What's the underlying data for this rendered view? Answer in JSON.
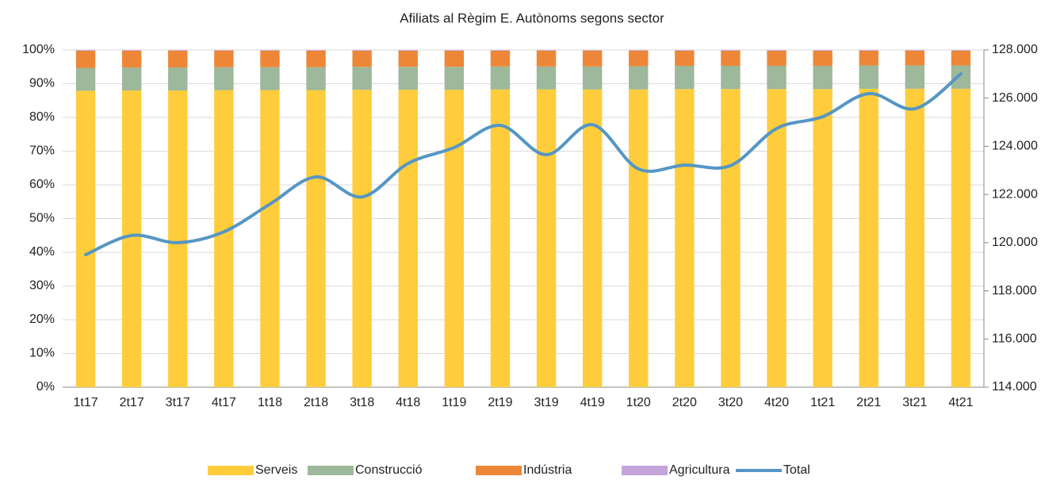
{
  "chart_data": {
    "type": "bar",
    "stacked": true,
    "title": "Afiliats al Règim E. Autònoms segons sector",
    "categories": [
      "1t17",
      "2t17",
      "3t17",
      "4t17",
      "1t18",
      "2t18",
      "3t18",
      "4t18",
      "1t19",
      "2t19",
      "3t19",
      "4t19",
      "1t20",
      "2t20",
      "3t20",
      "4t20",
      "1t21",
      "2t21",
      "3t21",
      "4t21"
    ],
    "series": [
      {
        "name": "Serveis",
        "color": "#FFCD3C",
        "values": [
          87.9,
          88.0,
          88.0,
          88.1,
          88.1,
          88.1,
          88.2,
          88.2,
          88.2,
          88.3,
          88.3,
          88.3,
          88.3,
          88.4,
          88.4,
          88.4,
          88.4,
          88.5,
          88.5,
          88.5
        ]
      },
      {
        "name": "Construcció",
        "color": "#9DB89A",
        "values": [
          6.8,
          6.8,
          6.8,
          6.8,
          6.8,
          6.8,
          6.8,
          6.8,
          6.8,
          6.8,
          6.8,
          6.8,
          6.9,
          6.9,
          6.9,
          6.9,
          6.9,
          6.9,
          6.9,
          6.9
        ]
      },
      {
        "name": "Indústria",
        "color": "#ED8737",
        "values": [
          5.1,
          5.0,
          5.0,
          4.9,
          4.9,
          4.9,
          4.8,
          4.8,
          4.8,
          4.7,
          4.7,
          4.7,
          4.6,
          4.5,
          4.5,
          4.5,
          4.5,
          4.4,
          4.4,
          4.4
        ]
      },
      {
        "name": "Agricultura",
        "color": "#C3A5D9",
        "values": [
          0.2,
          0.2,
          0.2,
          0.2,
          0.2,
          0.2,
          0.2,
          0.2,
          0.2,
          0.2,
          0.2,
          0.2,
          0.2,
          0.2,
          0.2,
          0.2,
          0.2,
          0.2,
          0.2,
          0.2
        ]
      },
      {
        "name": "Total",
        "type": "line",
        "axis": "y2",
        "color": "#5596C4",
        "values": [
          119500,
          120300,
          120000,
          120450,
          121600,
          122730,
          121900,
          123290,
          123950,
          124870,
          123650,
          124900,
          123060,
          123220,
          123200,
          124740,
          125230,
          126190,
          125560,
          127010
        ]
      }
    ],
    "ylim": [
      0,
      100
    ],
    "yticks": [
      {
        "value": 0,
        "label": "0%"
      },
      {
        "value": 10,
        "label": "10%"
      },
      {
        "value": 20,
        "label": "20%"
      },
      {
        "value": 30,
        "label": "30%"
      },
      {
        "value": 40,
        "label": "40%"
      },
      {
        "value": 50,
        "label": "50%"
      },
      {
        "value": 60,
        "label": "60%"
      },
      {
        "value": 70,
        "label": "70%"
      },
      {
        "value": 80,
        "label": "80%"
      },
      {
        "value": 90,
        "label": "90%"
      },
      {
        "value": 100,
        "label": "100%"
      }
    ],
    "y2lim": [
      114000,
      128000
    ],
    "y2ticks": [
      {
        "value": 114000,
        "label": "114.000"
      },
      {
        "value": 116000,
        "label": "116.000"
      },
      {
        "value": 118000,
        "label": "118.000"
      },
      {
        "value": 120000,
        "label": "120.000"
      },
      {
        "value": 122000,
        "label": "122.000"
      },
      {
        "value": 124000,
        "label": "124.000"
      },
      {
        "value": 126000,
        "label": "126.000"
      },
      {
        "value": 128000,
        "label": "128.000"
      }
    ],
    "grid": true,
    "legend": "bottom"
  }
}
